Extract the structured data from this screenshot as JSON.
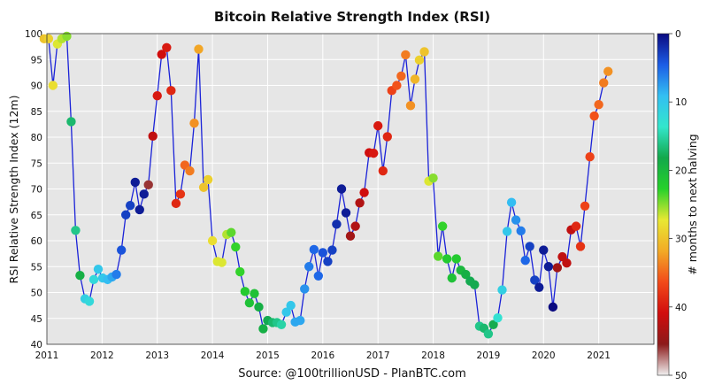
{
  "chart_data": {
    "type": "scatter",
    "title": "Bitcoin Relative Strength Index (RSI)",
    "xlabel": "",
    "ylabel": "RSI Relative Strength Index (12m)",
    "source": "Source: @100trillionUSD  -  PlanBTC.com",
    "xlim": [
      2011.0,
      2022.0
    ],
    "ylim": [
      40,
      100
    ],
    "x_ticks": [
      2011,
      2012,
      2013,
      2014,
      2015,
      2016,
      2017,
      2018,
      2019,
      2020,
      2021
    ],
    "y_ticks": [
      40,
      45,
      50,
      55,
      60,
      65,
      70,
      75,
      80,
      85,
      90,
      95,
      100
    ],
    "grid": true,
    "colorbar": {
      "label": "# months to next halving",
      "min": 0,
      "max": 50,
      "ticks": [
        0,
        10,
        20,
        30,
        40,
        50
      ],
      "colors": [
        "#0a0a80",
        "#1c5de6",
        "#33bff2",
        "#33e6cc",
        "#13a84b",
        "#26d12a",
        "#e8e833",
        "#f2aa26",
        "#f24a1a",
        "#d10d0d",
        "#8c1a1a",
        "#f0f0f0"
      ]
    },
    "series": [
      {
        "x": [
          2010.95,
          2011.03,
          2011.11,
          2011.19,
          2011.27,
          2011.36,
          2011.44,
          2011.52,
          2011.6,
          2011.69,
          2011.77,
          2011.85,
          2011.93,
          2012.01,
          2012.1,
          2012.18,
          2012.26,
          2012.35,
          2012.43,
          2012.51,
          2012.6,
          2012.68,
          2012.76,
          2012.84,
          2012.92,
          2013.0,
          2013.08,
          2013.17,
          2013.25,
          2013.34,
          2013.42,
          2013.5,
          2013.59,
          2013.67,
          2013.75,
          2013.84,
          2013.92,
          2014.0,
          2014.09,
          2014.17,
          2014.26,
          2014.34,
          2014.42,
          2014.5,
          2014.59,
          2014.67,
          2014.76,
          2014.84,
          2014.92,
          2015.0,
          2015.09,
          2015.17,
          2015.25,
          2015.34,
          2015.42,
          2015.5,
          2015.59,
          2015.67,
          2015.75,
          2015.84,
          2015.92,
          2016.0,
          2016.09,
          2016.17,
          2016.25,
          2016.34,
          2016.42,
          2016.5,
          2016.59,
          2016.67,
          2016.75,
          2016.84,
          2016.92,
          2017.0,
          2017.09,
          2017.17,
          2017.25,
          2017.34,
          2017.42,
          2017.5,
          2017.59,
          2017.67,
          2017.75,
          2017.84,
          2017.92,
          2018.0,
          2018.09,
          2018.17,
          2018.25,
          2018.34,
          2018.42,
          2018.5,
          2018.59,
          2018.67,
          2018.75,
          2018.84,
          2018.92,
          2019.0,
          2019.09,
          2019.17,
          2019.25,
          2019.34,
          2019.42,
          2019.5,
          2019.59,
          2019.67,
          2019.75,
          2019.84,
          2019.92,
          2020.0,
          2020.09,
          2020.17,
          2020.25,
          2020.34,
          2020.42,
          2020.5,
          2020.59,
          2020.67,
          2020.75,
          2020.84,
          2020.92,
          2021.0,
          2021.09,
          2021.17
        ],
        "y": [
          99,
          99,
          90,
          98,
          99,
          99.5,
          83,
          62,
          53.3,
          48.8,
          48.3,
          52.5,
          54.5,
          52.8,
          52.5,
          53,
          53.5,
          58.2,
          65,
          66.8,
          71.3,
          66,
          69,
          70.8,
          80.2,
          88,
          96,
          97.3,
          89,
          67.2,
          69,
          74.6,
          73.5,
          82.7,
          97,
          70.3,
          71.8,
          60,
          56,
          55.8,
          61.2,
          61.6,
          58.8,
          54,
          50.2,
          48,
          49.8,
          47.2,
          43,
          44.6,
          44.2,
          44.2,
          43.8,
          46.2,
          47.5,
          44.3,
          44.6,
          50.7,
          55,
          58.3,
          53.2,
          57.7,
          56,
          58.2,
          63.2,
          70,
          65.4,
          60.9,
          62.8,
          67.3,
          69.3,
          77,
          76.9,
          82.2,
          73.5,
          80.1,
          89,
          90,
          91.8,
          95.9,
          86.1,
          91.2,
          94.9,
          96.5,
          71.5,
          72.1,
          57,
          62.8,
          56.5,
          52.8,
          56.5,
          54.3,
          53.5,
          52.2,
          51.5,
          43.5,
          43.1,
          42,
          43.8,
          45.1,
          50.5,
          61.8,
          67.4,
          64,
          61.9,
          56.2,
          58.9,
          52.4,
          51,
          58.2,
          55,
          47.2,
          54.8,
          56.9,
          55.7,
          62.1,
          62.8,
          58.9,
          66.7,
          76.2,
          84.1,
          86.3,
          90.5,
          92.7
        ],
        "c": [
          30,
          29,
          28,
          27,
          26,
          25,
          17,
          16,
          19,
          11,
          12,
          12,
          10,
          10,
          9,
          8,
          6,
          4,
          3,
          3,
          1,
          1,
          1,
          46,
          42,
          40,
          41,
          40,
          39,
          39,
          38,
          35,
          34,
          33,
          32,
          30,
          29,
          28,
          27,
          27,
          26,
          24,
          23,
          23,
          22,
          21,
          21,
          19,
          19,
          18,
          17,
          16,
          15,
          10,
          10,
          8,
          8,
          7,
          6,
          5,
          5,
          4,
          3,
          3,
          2,
          1,
          1,
          44,
          43,
          43,
          41,
          41,
          40,
          40,
          39,
          39,
          37,
          36,
          35,
          34,
          33,
          31,
          29,
          30,
          27,
          25,
          24,
          23,
          22,
          21,
          22,
          20,
          19,
          18,
          18,
          16,
          17,
          16,
          18,
          13,
          11,
          10,
          9,
          7,
          6,
          5,
          3,
          3,
          1,
          1,
          1,
          0,
          44,
          42,
          42,
          42,
          39,
          38,
          37,
          37,
          36,
          35,
          34,
          33
        ]
      }
    ]
  }
}
